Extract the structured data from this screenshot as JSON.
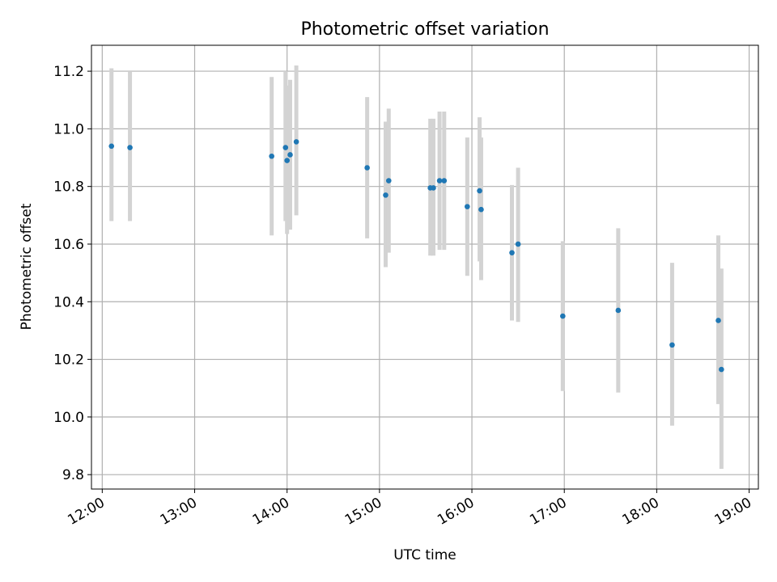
{
  "chart_data": {
    "type": "scatter",
    "title": "Photometric offset variation",
    "xlabel": "UTC time",
    "ylabel": "Photometric offset",
    "x_axis_type": "time",
    "xlim": [
      "11:53",
      "19:06"
    ],
    "ylim": [
      9.75,
      11.29
    ],
    "grid": true,
    "x_ticks": [
      "12:00",
      "13:00",
      "14:00",
      "15:00",
      "16:00",
      "17:00",
      "18:00",
      "19:00"
    ],
    "y_ticks": [
      "9.8",
      "10.0",
      "10.2",
      "10.4",
      "10.6",
      "10.8",
      "11.0",
      "11.2"
    ],
    "colors": {
      "points": "#1f77b4",
      "error_bars": "#d3d3d3",
      "grid": "#b0b0b0"
    },
    "points": [
      {
        "x": "12:06",
        "y": 10.94,
        "y_low": 10.68,
        "y_high": 11.21
      },
      {
        "x": "12:18",
        "y": 10.935,
        "y_low": 10.68,
        "y_high": 11.2
      },
      {
        "x": "13:50",
        "y": 10.905,
        "y_low": 10.63,
        "y_high": 11.18
      },
      {
        "x": "13:59",
        "y": 10.935,
        "y_low": 10.68,
        "y_high": 11.2
      },
      {
        "x": "14:00",
        "y": 10.89,
        "y_low": 10.635,
        "y_high": 11.15
      },
      {
        "x": "14:02",
        "y": 10.91,
        "y_low": 10.65,
        "y_high": 11.17
      },
      {
        "x": "14:06",
        "y": 10.955,
        "y_low": 10.7,
        "y_high": 11.22
      },
      {
        "x": "14:52",
        "y": 10.865,
        "y_low": 10.62,
        "y_high": 11.11
      },
      {
        "x": "15:04",
        "y": 10.77,
        "y_low": 10.52,
        "y_high": 11.025
      },
      {
        "x": "15:06",
        "y": 10.82,
        "y_low": 10.57,
        "y_high": 11.07
      },
      {
        "x": "15:33",
        "y": 10.795,
        "y_low": 10.56,
        "y_high": 11.035
      },
      {
        "x": "15:35",
        "y": 10.795,
        "y_low": 10.56,
        "y_high": 11.035
      },
      {
        "x": "15:39",
        "y": 10.82,
        "y_low": 10.58,
        "y_high": 11.06
      },
      {
        "x": "15:42",
        "y": 10.82,
        "y_low": 10.58,
        "y_high": 11.06
      },
      {
        "x": "15:57",
        "y": 10.73,
        "y_low": 10.49,
        "y_high": 10.97
      },
      {
        "x": "16:05",
        "y": 10.785,
        "y_low": 10.54,
        "y_high": 11.04
      },
      {
        "x": "16:06",
        "y": 10.72,
        "y_low": 10.475,
        "y_high": 10.97
      },
      {
        "x": "16:26",
        "y": 10.57,
        "y_low": 10.335,
        "y_high": 10.805
      },
      {
        "x": "16:30",
        "y": 10.6,
        "y_low": 10.33,
        "y_high": 10.865
      },
      {
        "x": "16:59",
        "y": 10.35,
        "y_low": 10.09,
        "y_high": 10.61
      },
      {
        "x": "17:35",
        "y": 10.37,
        "y_low": 10.085,
        "y_high": 10.655
      },
      {
        "x": "18:10",
        "y": 10.25,
        "y_low": 9.97,
        "y_high": 10.535
      },
      {
        "x": "18:40",
        "y": 10.335,
        "y_low": 10.045,
        "y_high": 10.63
      },
      {
        "x": "18:42",
        "y": 10.165,
        "y_low": 9.82,
        "y_high": 10.515
      }
    ]
  }
}
